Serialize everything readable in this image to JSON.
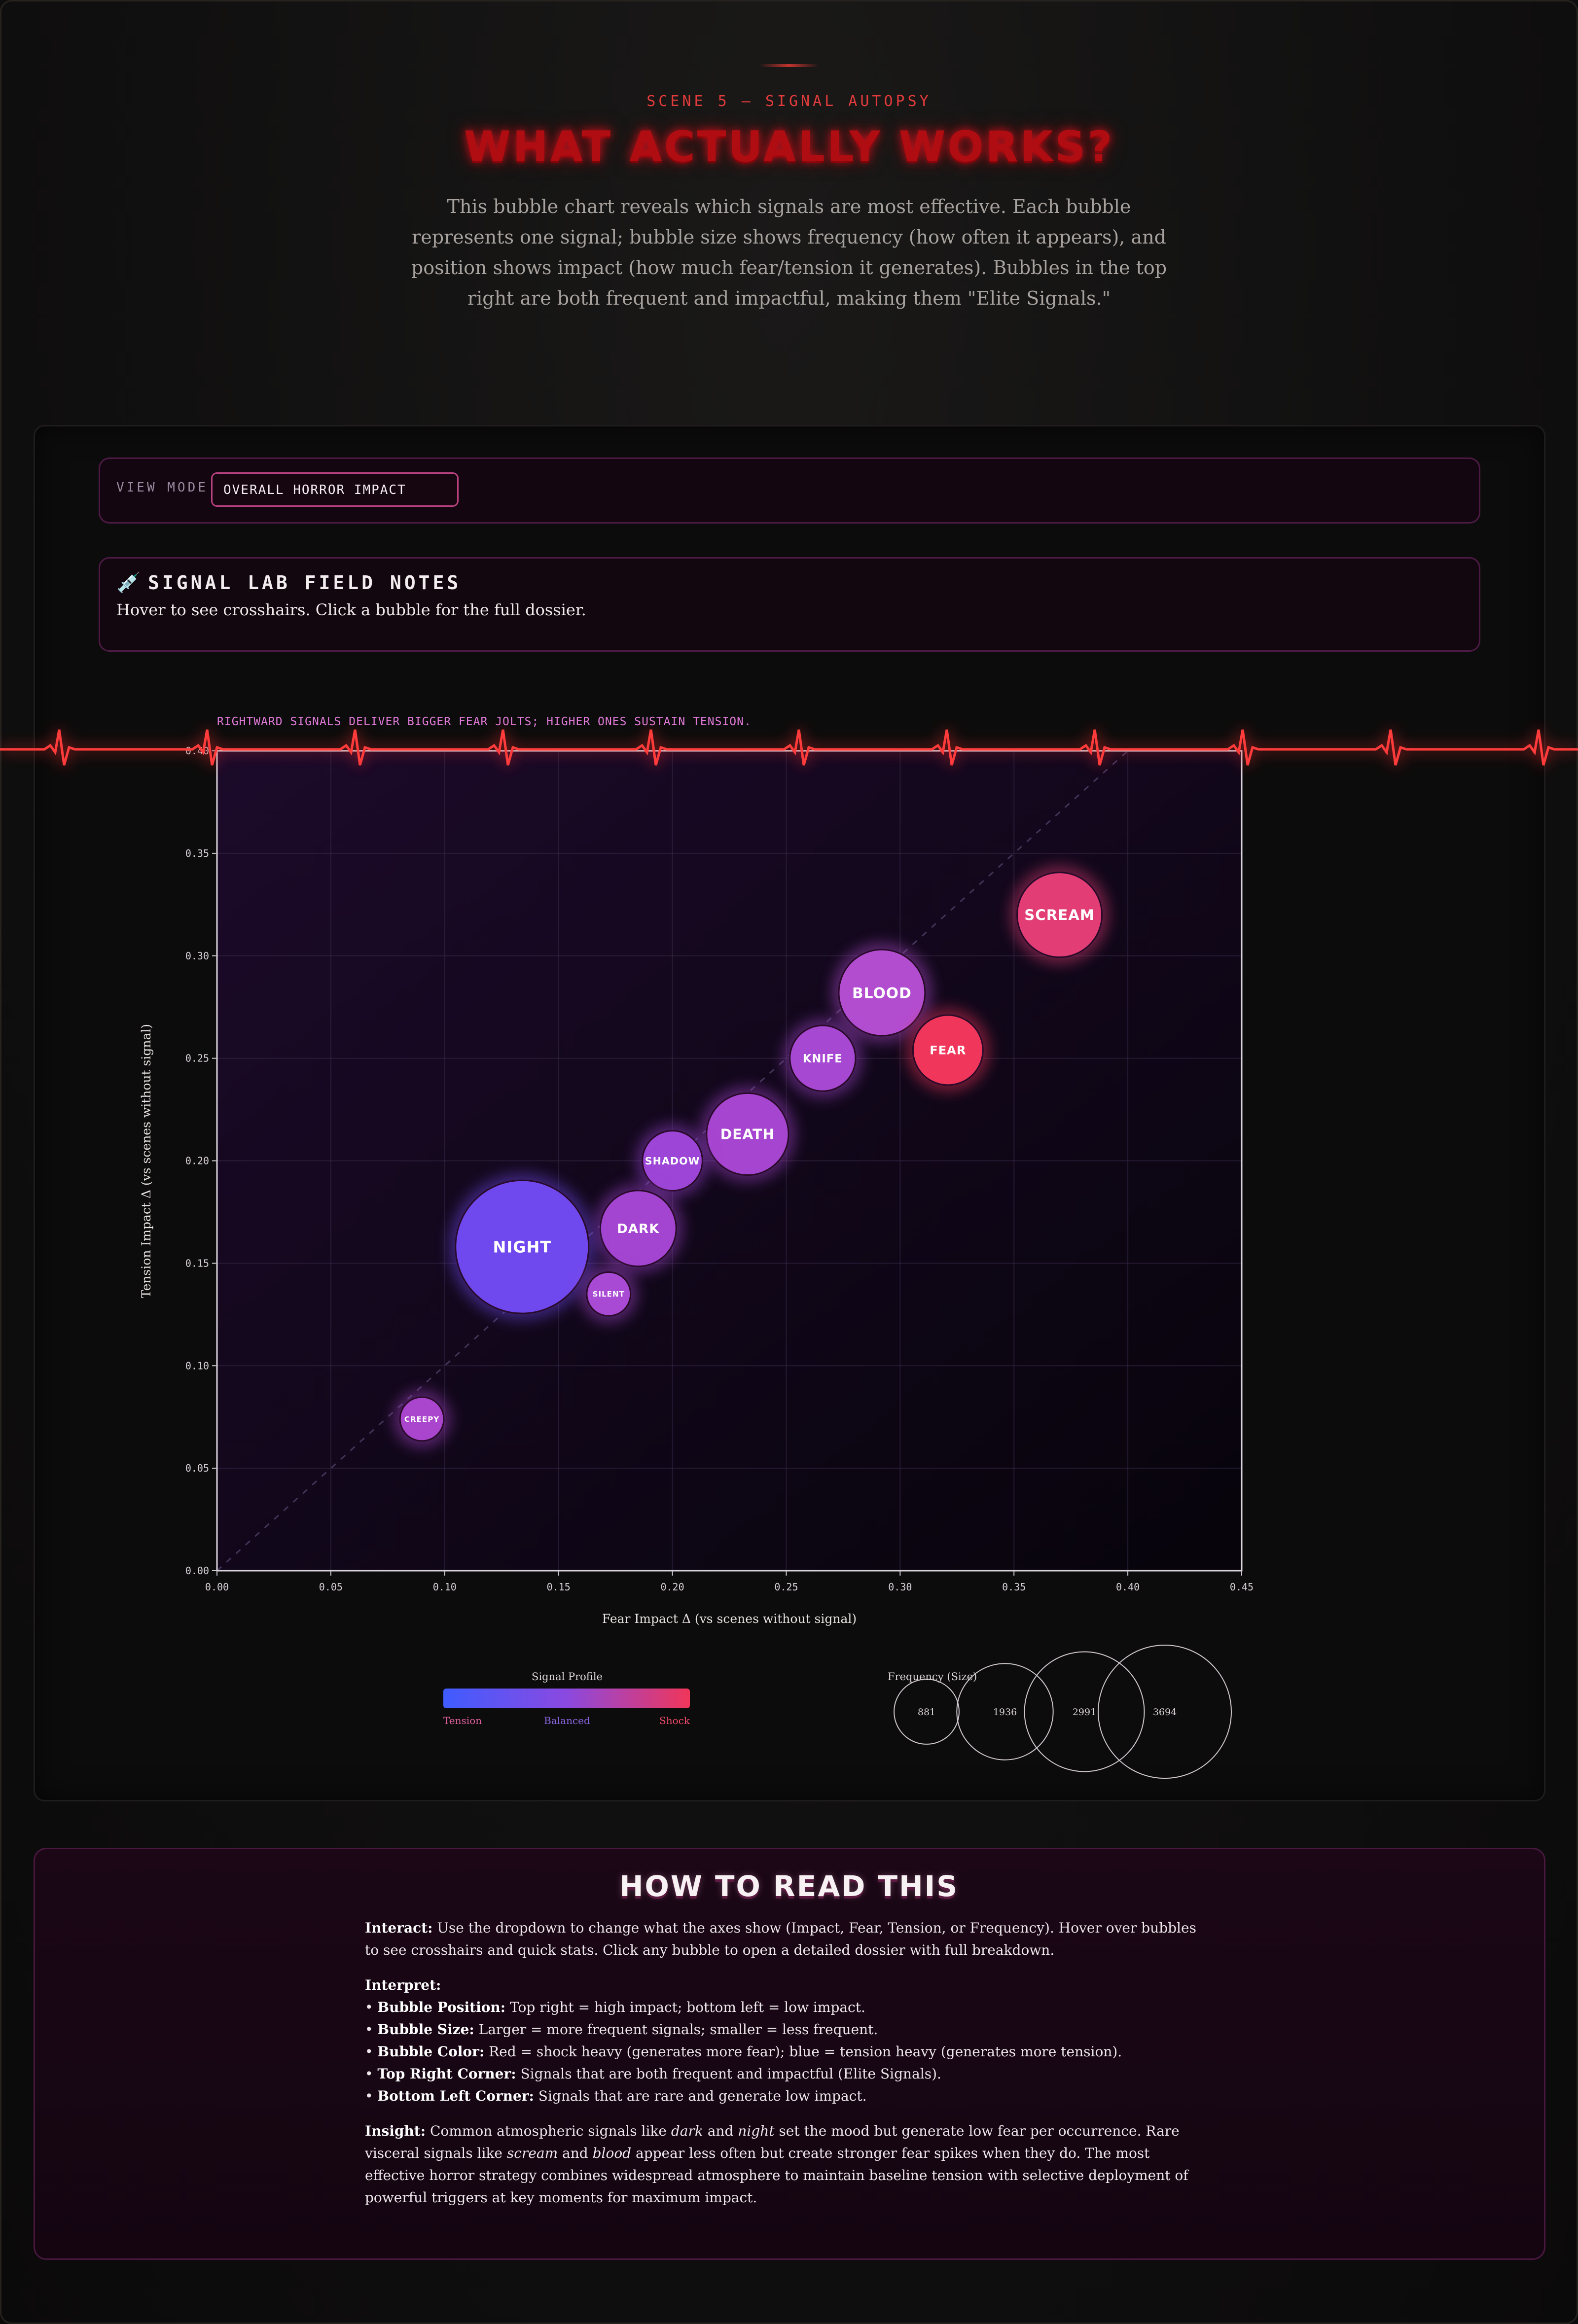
{
  "header": {
    "kicker": "SCENE 5 — SIGNAL AUTOPSY",
    "title": "WHAT ACTUALLY WORKS?",
    "intro": "This bubble chart reveals which signals are most effective. Each bubble represents one signal; bubble size shows frequency (how often it appears), and position shows impact (how much fear/tension it generates). Bubbles in the top right are both frequent and impactful, making them \"Elite Signals.\""
  },
  "controls": {
    "view_mode_label": "VIEW MODE",
    "view_mode_value": "OVERALL HORROR IMPACT"
  },
  "notes": {
    "icon": "syringe-icon",
    "title": "SIGNAL LAB FIELD NOTES",
    "text": "Hover to see crosshairs. Click a bubble for the full dossier."
  },
  "chart_data": {
    "type": "scatter",
    "annotation": "RIGHTWARD SIGNALS DELIVER BIGGER FEAR JOLTS; HIGHER ONES SUSTAIN TENSION.",
    "xlabel": "Fear Impact Δ (vs scenes without signal)",
    "ylabel": "Tension Impact Δ (vs scenes without signal)",
    "xlim": [
      0,
      0.45
    ],
    "ylim": [
      0,
      0.4
    ],
    "xticks": [
      "0.00",
      "0.05",
      "0.10",
      "0.15",
      "0.20",
      "0.25",
      "0.30",
      "0.35",
      "0.40",
      "0.45"
    ],
    "yticks": [
      "0.00",
      "0.05",
      "0.10",
      "0.15",
      "0.20",
      "0.25",
      "0.30",
      "0.35",
      "0.40"
    ],
    "diagonal_reference": true,
    "grid": true,
    "points": [
      {
        "name": "SCREAM",
        "x": 0.37,
        "y": 0.32,
        "frequency": 1500,
        "color": "#e23d74"
      },
      {
        "name": "BLOOD",
        "x": 0.292,
        "y": 0.282,
        "frequency": 1550,
        "color": "#b24dd0"
      },
      {
        "name": "FEAR",
        "x": 0.321,
        "y": 0.254,
        "frequency": 1020,
        "color": "#f0365a"
      },
      {
        "name": "KNIFE",
        "x": 0.266,
        "y": 0.25,
        "frequency": 900,
        "color": "#a648d2"
      },
      {
        "name": "DEATH",
        "x": 0.233,
        "y": 0.213,
        "frequency": 1400,
        "color": "#a645cf"
      },
      {
        "name": "SHADOW",
        "x": 0.2,
        "y": 0.2,
        "frequency": 750,
        "color": "#9c45d6"
      },
      {
        "name": "DARK",
        "x": 0.185,
        "y": 0.167,
        "frequency": 1200,
        "color": "#a345d0"
      },
      {
        "name": "NIGHT",
        "x": 0.134,
        "y": 0.158,
        "frequency": 3694,
        "color": "#7049ee"
      },
      {
        "name": "SILENT",
        "x": 0.172,
        "y": 0.135,
        "frequency": 400,
        "color": "#a84ad3"
      },
      {
        "name": "CREEPY",
        "x": 0.09,
        "y": 0.074,
        "frequency": 400,
        "color": "#aa45cd"
      }
    ],
    "color_legend": {
      "title": "Signal Profile",
      "labels": [
        "Tension",
        "Balanced",
        "Shock"
      ],
      "colors": [
        "#3f5cff",
        "#8b49e0",
        "#f0365a"
      ]
    },
    "size_legend": {
      "title": "Frequency (Size)",
      "values": [
        881,
        1936,
        2991,
        3694
      ]
    }
  },
  "how": {
    "title": "HOW TO READ THIS",
    "interact_label": "Interact:",
    "interact_text": " Use the dropdown to change what the axes show (Impact, Fear, Tension, or Frequency). Hover over bubbles to see crosshairs and quick stats. Click any bubble to open a detailed dossier with full breakdown.",
    "interpret_label": "Interpret:",
    "items": [
      {
        "label": "Bubble Position:",
        "text": " Top right = high impact; bottom left = low impact."
      },
      {
        "label": "Bubble Size:",
        "text": " Larger = more frequent signals; smaller = less frequent."
      },
      {
        "label": "Bubble Color:",
        "text": " Red = shock heavy (generates more fear); blue = tension heavy (generates more tension)."
      },
      {
        "label": "Top Right Corner:",
        "text": " Signals that are both frequent and impactful (Elite Signals)."
      },
      {
        "label": "Bottom Left Corner:",
        "text": " Signals that are rare and generate low impact."
      }
    ],
    "insight_label": "Insight:",
    "insight_1": " Common atmospheric signals like ",
    "insight_em_1": "dark",
    "insight_2": " and ",
    "insight_em_2": "night",
    "insight_3": " set the mood but generate low fear per occurrence. Rare visceral signals like ",
    "insight_em_3": "scream",
    "insight_4": " and ",
    "insight_em_4": "blood",
    "insight_5": " appear less often but create stronger fear spikes when they do. The most effective horror strategy combines widespread atmosphere to maintain baseline tension with selective deployment of powerful triggers at key moments for maximum impact."
  }
}
